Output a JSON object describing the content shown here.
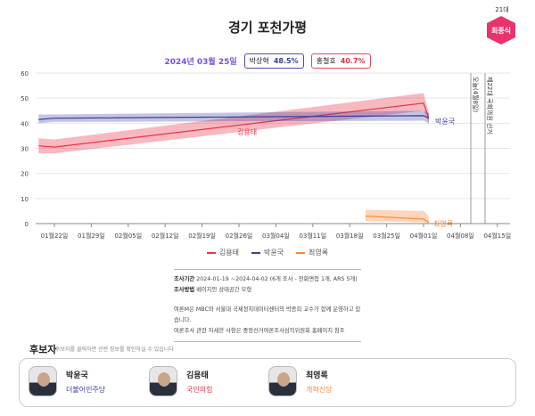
{
  "header": {
    "title": "경기 포천가평",
    "round": "21대",
    "badge": "최종식"
  },
  "poll": {
    "date": "2024년 03월 25일",
    "leaders": [
      {
        "name": "박상혁",
        "value": "48.5%"
      },
      {
        "name": "홍철호",
        "value": "40.7%"
      }
    ]
  },
  "chart_data": {
    "type": "line",
    "ylim": [
      0,
      60
    ],
    "yticks": [
      "0",
      "10",
      "20",
      "30",
      "40",
      "50",
      "60"
    ],
    "xticks": [
      "01월22일",
      "01월29일",
      "02월05일",
      "02월12일",
      "02월19일",
      "02월26일",
      "03월04일",
      "03월11일",
      "03월18일",
      "03월25일",
      "04월01일",
      "04월08일",
      "04월15일"
    ],
    "grid": true,
    "legend": "bottom",
    "series": [
      {
        "name": "김용태",
        "color": "#e8334a",
        "x": [
          "01-19",
          "01-22",
          "04-01",
          "04-02"
        ],
        "values": [
          31,
          30.5,
          48,
          42
        ],
        "lower": [
          28,
          28,
          45,
          40
        ],
        "upper": [
          34,
          33.5,
          52,
          44
        ]
      },
      {
        "name": "박윤국",
        "color": "#3a3f9e",
        "x": [
          "01-19",
          "01-22",
          "04-01",
          "04-02"
        ],
        "values": [
          41.5,
          42,
          43,
          42
        ],
        "lower": [
          40,
          40.5,
          41,
          40
        ],
        "upper": [
          43.5,
          43.5,
          45,
          44
        ]
      },
      {
        "name": "최영록",
        "color": "#f5883a",
        "x": [
          "03-21",
          "04-01",
          "04-02"
        ],
        "values": [
          3,
          1.8,
          0.5
        ],
        "lower": [
          1,
          0.5,
          0
        ],
        "upper": [
          5.5,
          5,
          3
        ]
      }
    ],
    "annotations": [
      "오늘(4월8일)",
      "제22대 국회의원 선거"
    ]
  },
  "notes": {
    "period_label": "조사기간",
    "period": "2024-01-19 ~2024-04-02 (6개 조사 - 전화면접 1개, ARS 5개)",
    "method_label": "조사방법",
    "method": "베이지안 상태공간 모형",
    "line1": "여론M은 MBC와 서울대 국제정치데이터센터의 박종희 교수가 함께 운영하고 있습니다.",
    "line2": "여론조사 관련 자세한 사항은 중앙선거여론조사심의위원회 홈페이지 참조"
  },
  "candidates": {
    "title": "후보자",
    "subtitle": "후보자를 클릭하면 관련 정보를 확인하실 수 있습니다",
    "items": [
      {
        "name": "박윤국",
        "party": "더불어민주당",
        "color": "#3a3f9e"
      },
      {
        "name": "김용태",
        "party": "국민의힘",
        "color": "#e8334a"
      },
      {
        "name": "최영록",
        "party": "개혁신당",
        "color": "#f5883a"
      }
    ]
  }
}
